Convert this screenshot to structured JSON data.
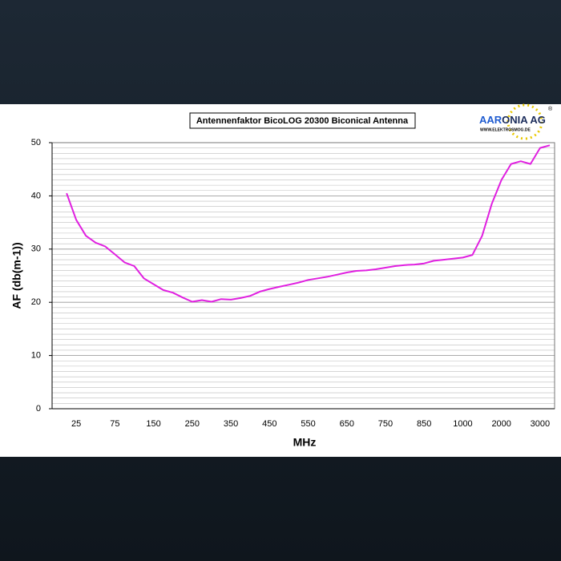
{
  "chart_data": {
    "type": "line",
    "title": "Antennenfaktor BicoLOG 20300 Biconical Antenna",
    "logo": {
      "name_part1": "AAR",
      "name_part2": "ONIA AG",
      "mark": "®",
      "url": "WWW.ELEKTROSMOG.DE"
    },
    "x_label": "MHz",
    "y_label": "AF (db(m-1))",
    "categories": [
      null,
      null,
      "25",
      null,
      null,
      null,
      "75",
      null,
      null,
      null,
      "150",
      null,
      null,
      null,
      "250",
      null,
      null,
      null,
      "350",
      null,
      null,
      null,
      "450",
      null,
      null,
      null,
      "550",
      null,
      null,
      null,
      "650",
      null,
      null,
      null,
      "750",
      null,
      null,
      null,
      "850",
      null,
      null,
      null,
      "1000",
      null,
      null,
      null,
      "2000",
      null,
      null,
      null,
      "3000",
      null
    ],
    "series": [
      {
        "name": "AF",
        "color": "#e020e0",
        "values": [
          null,
          40.5,
          35.5,
          32.5,
          31.2,
          30.5,
          29,
          27.5,
          26.8,
          24.5,
          23.4,
          22.3,
          21.8,
          20.9,
          20.1,
          20.4,
          20.1,
          20.6,
          20.5,
          20.8,
          21.2,
          22,
          22.5,
          22.9,
          23.3,
          23.7,
          24.2,
          24.5,
          24.8,
          25.2,
          25.6,
          25.9,
          26,
          26.2,
          26.5,
          26.8,
          27,
          27.1,
          27.3,
          27.8,
          28,
          28.2,
          28.4,
          28.9,
          32.5,
          38.5,
          43,
          46,
          46.5,
          46,
          49,
          49.5
        ]
      }
    ],
    "ylim": [
      0,
      50
    ],
    "yticks": [
      0,
      10,
      20,
      30,
      40,
      50
    ],
    "grid": true,
    "minor_grid_step": 1
  }
}
